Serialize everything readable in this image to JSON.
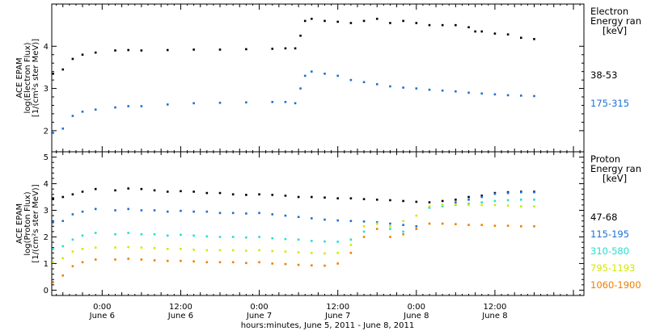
{
  "footer_label": "hours:minutes, June  5, 2011 - June  8, 2011",
  "time_ticks": [
    {
      "hours": 24,
      "time": "0:00",
      "date": "June 6"
    },
    {
      "hours": 36,
      "time": "12:00",
      "date": "June 6"
    },
    {
      "hours": 48,
      "time": "0:00",
      "date": "June 7"
    },
    {
      "hours": 60,
      "time": "12:00",
      "date": "June 7"
    },
    {
      "hours": 72,
      "time": "0:00",
      "date": "June 8"
    },
    {
      "hours": 84,
      "time": "12:00",
      "date": "June 8"
    }
  ],
  "chart_data": [
    {
      "type": "scatter",
      "panel": "electron",
      "ylabel": [
        "ACE EPAM",
        "log(Electron Flux)",
        "[1/(cm²s ster MeV)]"
      ],
      "xlim_hours": [
        16.3,
        97.6
      ],
      "ylim": [
        1.5,
        5.0
      ],
      "yticks": [
        2,
        3,
        4
      ],
      "legend_title": [
        "Electron",
        "Energy ran",
        "[keV]"
      ],
      "series": [
        {
          "name": "38-53",
          "color": "#000000",
          "points": [
            [
              16.5,
              3.35
            ],
            [
              18,
              3.45
            ],
            [
              19.5,
              3.7
            ],
            [
              21,
              3.8
            ],
            [
              23,
              3.85
            ],
            [
              26,
              3.9
            ],
            [
              28,
              3.91
            ],
            [
              30,
              3.9
            ],
            [
              34,
              3.91
            ],
            [
              38,
              3.92
            ],
            [
              42,
              3.92
            ],
            [
              46,
              3.93
            ],
            [
              50,
              3.94
            ],
            [
              52,
              3.95
            ],
            [
              53.5,
              3.95
            ],
            [
              54.3,
              4.25
            ],
            [
              55,
              4.6
            ],
            [
              56,
              4.65
            ],
            [
              58,
              4.6
            ],
            [
              60,
              4.58
            ],
            [
              62,
              4.55
            ],
            [
              64,
              4.6
            ],
            [
              66,
              4.65
            ],
            [
              68,
              4.55
            ],
            [
              70,
              4.6
            ],
            [
              72,
              4.55
            ],
            [
              74,
              4.5
            ],
            [
              76,
              4.5
            ],
            [
              78,
              4.5
            ],
            [
              80,
              4.45
            ],
            [
              81,
              4.35
            ],
            [
              82,
              4.35
            ],
            [
              84,
              4.3
            ],
            [
              86,
              4.28
            ],
            [
              88,
              4.2
            ],
            [
              90,
              4.17
            ]
          ]
        },
        {
          "name": "175-315",
          "color": "#1e6fd4",
          "points": [
            [
              16.5,
              1.95
            ],
            [
              18,
              2.05
            ],
            [
              19.5,
              2.35
            ],
            [
              21,
              2.45
            ],
            [
              23,
              2.5
            ],
            [
              26,
              2.55
            ],
            [
              28,
              2.58
            ],
            [
              30,
              2.58
            ],
            [
              34,
              2.62
            ],
            [
              38,
              2.65
            ],
            [
              42,
              2.66
            ],
            [
              46,
              2.67
            ],
            [
              50,
              2.68
            ],
            [
              52,
              2.68
            ],
            [
              53.5,
              2.65
            ],
            [
              54.3,
              3.0
            ],
            [
              55,
              3.3
            ],
            [
              56,
              3.4
            ],
            [
              58,
              3.35
            ],
            [
              60,
              3.3
            ],
            [
              62,
              3.2
            ],
            [
              64,
              3.15
            ],
            [
              66,
              3.1
            ],
            [
              68,
              3.05
            ],
            [
              70,
              3.02
            ],
            [
              72,
              3.0
            ],
            [
              74,
              2.97
            ],
            [
              76,
              2.95
            ],
            [
              78,
              2.93
            ],
            [
              80,
              2.9
            ],
            [
              82,
              2.88
            ],
            [
              84,
              2.86
            ],
            [
              86,
              2.84
            ],
            [
              88,
              2.83
            ],
            [
              90,
              2.82
            ]
          ]
        }
      ]
    },
    {
      "type": "scatter",
      "panel": "proton",
      "ylabel": [
        "ACE EPAM",
        "log(Proton Flux)",
        "[1/(cm²s ster MeV)]"
      ],
      "xlim_hours": [
        16.3,
        97.6
      ],
      "ylim": [
        -0.2,
        5.2
      ],
      "yticks": [
        0,
        1,
        2,
        3,
        4,
        5
      ],
      "legend_title": [
        "Proton",
        "Energy ran",
        "[keV]"
      ],
      "series": [
        {
          "name": "47-68",
          "color": "#000000",
          "points": [
            [
              16.5,
              3.45
            ],
            [
              18,
              3.5
            ],
            [
              19.5,
              3.6
            ],
            [
              21,
              3.7
            ],
            [
              23,
              3.8
            ],
            [
              26,
              3.75
            ],
            [
              28,
              3.82
            ],
            [
              30,
              3.8
            ],
            [
              32,
              3.75
            ],
            [
              34,
              3.7
            ],
            [
              36,
              3.72
            ],
            [
              38,
              3.7
            ],
            [
              40,
              3.65
            ],
            [
              42,
              3.65
            ],
            [
              44,
              3.6
            ],
            [
              46,
              3.58
            ],
            [
              48,
              3.6
            ],
            [
              50,
              3.58
            ],
            [
              52,
              3.55
            ],
            [
              54,
              3.5
            ],
            [
              56,
              3.5
            ],
            [
              58,
              3.48
            ],
            [
              60,
              3.45
            ],
            [
              62,
              3.45
            ],
            [
              64,
              3.42
            ],
            [
              66,
              3.4
            ],
            [
              68,
              3.38
            ],
            [
              70,
              3.35
            ],
            [
              72,
              3.32
            ],
            [
              74,
              3.3
            ],
            [
              76,
              3.35
            ],
            [
              78,
              3.4
            ],
            [
              80,
              3.5
            ],
            [
              82,
              3.55
            ],
            [
              84,
              3.65
            ],
            [
              86,
              3.68
            ],
            [
              88,
              3.7
            ],
            [
              90,
              3.7
            ]
          ]
        },
        {
          "name": "115-195",
          "color": "#1e6fd4",
          "points": [
            [
              16.5,
              2.55
            ],
            [
              18,
              2.6
            ],
            [
              19.5,
              2.85
            ],
            [
              21,
              2.95
            ],
            [
              23,
              3.05
            ],
            [
              26,
              3.0
            ],
            [
              28,
              3.05
            ],
            [
              30,
              3.0
            ],
            [
              32,
              3.0
            ],
            [
              34,
              2.95
            ],
            [
              36,
              2.98
            ],
            [
              38,
              2.95
            ],
            [
              40,
              2.95
            ],
            [
              42,
              2.9
            ],
            [
              44,
              2.9
            ],
            [
              46,
              2.88
            ],
            [
              48,
              2.9
            ],
            [
              50,
              2.85
            ],
            [
              52,
              2.8
            ],
            [
              54,
              2.75
            ],
            [
              56,
              2.7
            ],
            [
              58,
              2.65
            ],
            [
              60,
              2.62
            ],
            [
              62,
              2.6
            ],
            [
              64,
              2.58
            ],
            [
              66,
              2.55
            ],
            [
              68,
              2.5
            ],
            [
              70,
              2.45
            ],
            [
              72,
              2.4
            ],
            [
              74,
              3.1
            ],
            [
              76,
              3.2
            ],
            [
              78,
              3.3
            ],
            [
              80,
              3.4
            ],
            [
              82,
              3.5
            ],
            [
              84,
              3.62
            ],
            [
              86,
              3.65
            ],
            [
              88,
              3.68
            ],
            [
              90,
              3.68
            ]
          ]
        },
        {
          "name": "310-580",
          "color": "#22e0d0",
          "points": [
            [
              16.5,
              1.55
            ],
            [
              18,
              1.65
            ],
            [
              19.5,
              1.9
            ],
            [
              21,
              2.05
            ],
            [
              23,
              2.15
            ],
            [
              26,
              2.1
            ],
            [
              28,
              2.15
            ],
            [
              30,
              2.1
            ],
            [
              32,
              2.1
            ],
            [
              34,
              2.05
            ],
            [
              36,
              2.08
            ],
            [
              38,
              2.05
            ],
            [
              40,
              2.02
            ],
            [
              42,
              2.0
            ],
            [
              44,
              2.0
            ],
            [
              46,
              1.98
            ],
            [
              48,
              2.0
            ],
            [
              50,
              1.95
            ],
            [
              52,
              1.92
            ],
            [
              54,
              1.9
            ],
            [
              56,
              1.85
            ],
            [
              58,
              1.83
            ],
            [
              60,
              1.82
            ],
            [
              62,
              1.9
            ],
            [
              64,
              2.2
            ],
            [
              66,
              2.5
            ],
            [
              68,
              2.3
            ],
            [
              70,
              2.2
            ],
            [
              72,
              2.3
            ],
            [
              74,
              3.1
            ],
            [
              76,
              3.15
            ],
            [
              78,
              3.2
            ],
            [
              80,
              3.25
            ],
            [
              82,
              3.3
            ],
            [
              84,
              3.35
            ],
            [
              86,
              3.38
            ],
            [
              88,
              3.4
            ],
            [
              90,
              3.4
            ]
          ]
        },
        {
          "name": "795-1193",
          "color": "#d4e800",
          "points": [
            [
              16.5,
              1.05
            ],
            [
              18,
              1.2
            ],
            [
              19.5,
              1.45
            ],
            [
              21,
              1.55
            ],
            [
              23,
              1.6
            ],
            [
              26,
              1.6
            ],
            [
              28,
              1.62
            ],
            [
              30,
              1.6
            ],
            [
              32,
              1.58
            ],
            [
              34,
              1.55
            ],
            [
              36,
              1.55
            ],
            [
              38,
              1.52
            ],
            [
              40,
              1.5
            ],
            [
              42,
              1.5
            ],
            [
              44,
              1.5
            ],
            [
              46,
              1.48
            ],
            [
              48,
              1.5
            ],
            [
              50,
              1.47
            ],
            [
              52,
              1.45
            ],
            [
              54,
              1.42
            ],
            [
              56,
              1.4
            ],
            [
              58,
              1.38
            ],
            [
              60,
              1.4
            ],
            [
              62,
              1.7
            ],
            [
              64,
              2.4
            ],
            [
              66,
              2.5
            ],
            [
              68,
              2.4
            ],
            [
              70,
              2.6
            ],
            [
              72,
              2.8
            ],
            [
              74,
              3.15
            ],
            [
              76,
              3.2
            ],
            [
              78,
              3.22
            ],
            [
              80,
              3.2
            ],
            [
              82,
              3.2
            ],
            [
              84,
              3.2
            ],
            [
              86,
              3.18
            ],
            [
              88,
              3.15
            ],
            [
              90,
              3.15
            ]
          ]
        },
        {
          "name": "1060-1900",
          "color": "#f07f00",
          "points": [
            [
              16.5,
              0.3
            ],
            [
              18,
              0.55
            ],
            [
              19.5,
              0.9
            ],
            [
              21,
              1.05
            ],
            [
              23,
              1.15
            ],
            [
              26,
              1.15
            ],
            [
              28,
              1.18
            ],
            [
              30,
              1.15
            ],
            [
              32,
              1.12
            ],
            [
              34,
              1.1
            ],
            [
              36,
              1.1
            ],
            [
              38,
              1.08
            ],
            [
              40,
              1.05
            ],
            [
              42,
              1.05
            ],
            [
              44,
              1.05
            ],
            [
              46,
              1.02
            ],
            [
              48,
              1.05
            ],
            [
              50,
              1.0
            ],
            [
              52,
              0.98
            ],
            [
              54,
              0.95
            ],
            [
              56,
              0.93
            ],
            [
              58,
              0.92
            ],
            [
              60,
              1.0
            ],
            [
              62,
              1.4
            ],
            [
              64,
              2.0
            ],
            [
              66,
              2.3
            ],
            [
              68,
              2.0
            ],
            [
              70,
              2.1
            ],
            [
              72,
              2.3
            ],
            [
              74,
              2.5
            ],
            [
              76,
              2.5
            ],
            [
              78,
              2.48
            ],
            [
              80,
              2.45
            ],
            [
              82,
              2.45
            ],
            [
              84,
              2.42
            ],
            [
              86,
              2.42
            ],
            [
              88,
              2.4
            ],
            [
              90,
              2.4
            ]
          ]
        }
      ]
    }
  ]
}
